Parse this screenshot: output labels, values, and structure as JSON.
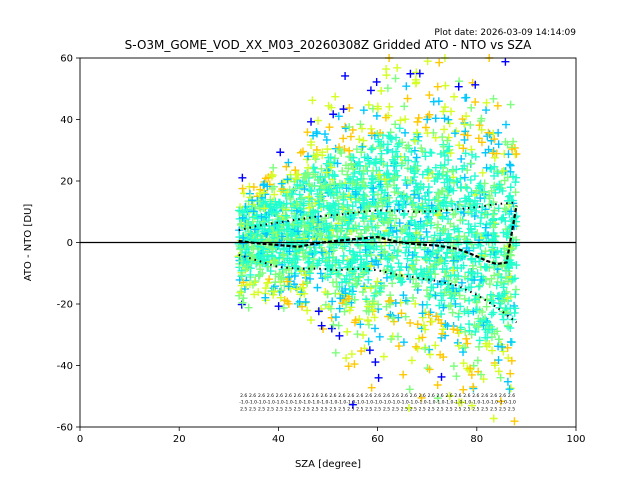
{
  "plot_date": "Plot date: 2026-03-09 14:14:09",
  "chart_data": {
    "type": "scatter",
    "title": "S-O3M_GOME_VOD_XX_M03_20260308Z Gridded ATO - NTO vs SZA",
    "xlabel": "SZA [degree]",
    "ylabel": "ATO - NTO [DU]",
    "xlim": [
      0,
      100
    ],
    "ylim": [
      -60,
      60
    ],
    "xticks": [
      0,
      20,
      40,
      60,
      80,
      100
    ],
    "yticks": [
      -60,
      -40,
      -20,
      0,
      20,
      40,
      60
    ],
    "grid": false,
    "legend": "none",
    "marker": "+",
    "zero_line": 0,
    "point_colors": [
      "#0000ff",
      "#00c8ff",
      "#22ffcf",
      "#7cff7c",
      "#d4ff24",
      "#ffc800"
    ],
    "sza_range": [
      32,
      88
    ],
    "bias_curve": {
      "x": [
        32,
        36,
        40,
        44,
        48,
        52,
        56,
        60,
        64,
        68,
        72,
        76,
        78,
        80,
        82,
        84,
        86,
        88
      ],
      "y": [
        0.5,
        -0.3,
        -0.8,
        -1.4,
        -0.2,
        0.6,
        1.2,
        1.8,
        0.2,
        -0.6,
        -1.0,
        -2.0,
        -3.2,
        -4.5,
        -6.0,
        -7.0,
        -6.5,
        12
      ]
    },
    "upper_std_curve": {
      "x": [
        32,
        36,
        40,
        44,
        48,
        52,
        56,
        60,
        64,
        68,
        72,
        76,
        80,
        84,
        88
      ],
      "y": [
        4.0,
        5.5,
        6.5,
        7.5,
        8.5,
        9.0,
        9.8,
        10.5,
        10.3,
        10.0,
        10.2,
        10.8,
        11.5,
        12.5,
        13.0
      ]
    },
    "lower_std_curve": {
      "x": [
        32,
        36,
        40,
        44,
        48,
        52,
        56,
        60,
        64,
        68,
        72,
        76,
        80,
        84,
        88
      ],
      "y": [
        -4.0,
        -6.0,
        -8.0,
        -8.5,
        -8.5,
        -9.0,
        -8.5,
        -9.0,
        -10.5,
        -11.5,
        -12.5,
        -14.0,
        -17.0,
        -21.0,
        -26.0
      ]
    },
    "scatter_envelope": {
      "x": [
        32,
        40,
        48,
        56,
        64,
        72,
        80,
        88
      ],
      "top": [
        20,
        27,
        42,
        50,
        60,
        55,
        55,
        45
      ],
      "bottom": [
        -20,
        -22,
        -25,
        -40,
        -38,
        -45,
        -58,
        -55
      ]
    }
  }
}
